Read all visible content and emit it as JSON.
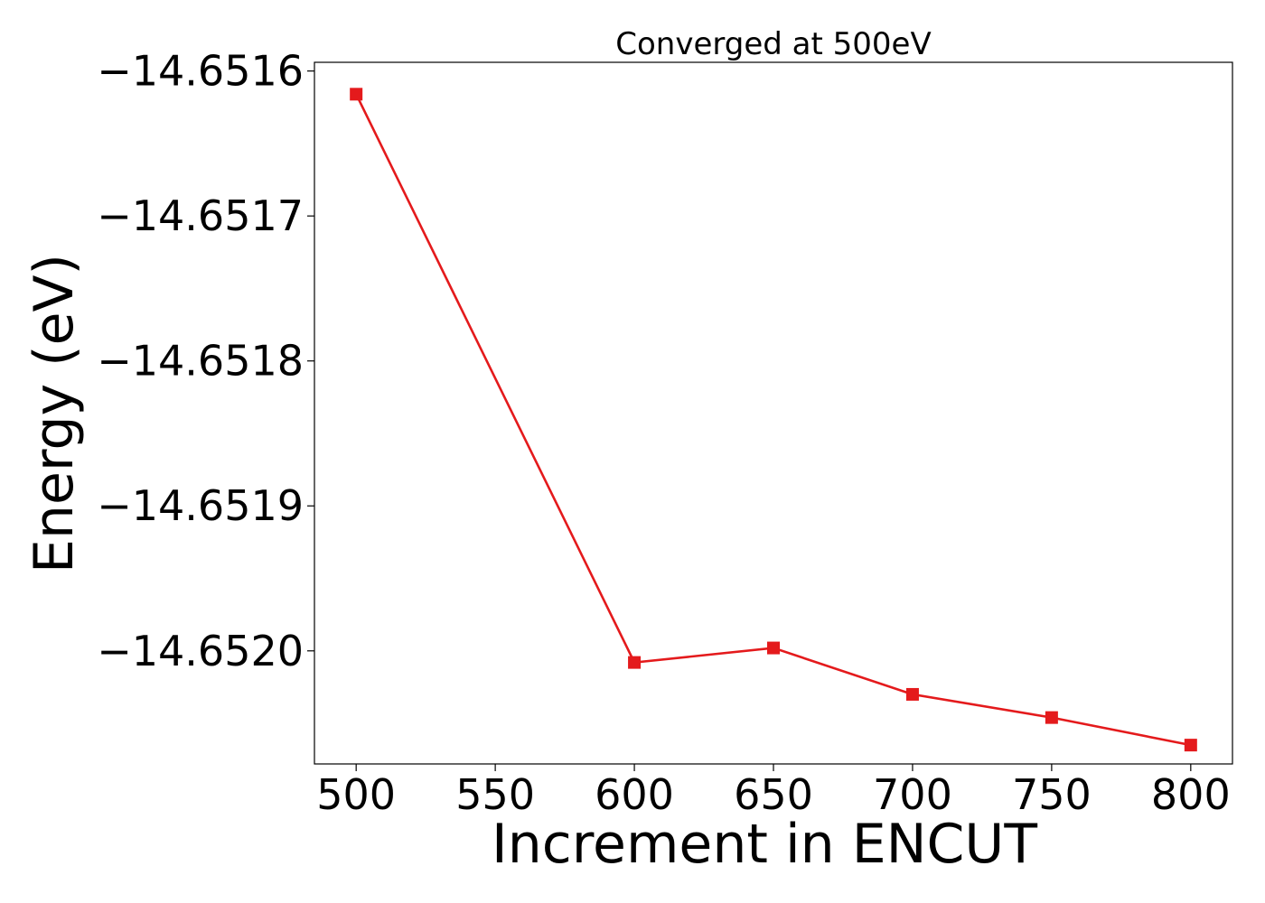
{
  "chart_data": {
    "type": "line",
    "title": "Converged at 500eV",
    "xlabel": "Increment in ENCUT",
    "ylabel": "Energy (eV)",
    "xlim": [
      485,
      815
    ],
    "ylim": [
      -14.652078,
      -14.651594
    ],
    "xticks": [
      500,
      550,
      600,
      650,
      700,
      750,
      800
    ],
    "xtick_labels": [
      "500",
      "550",
      "600",
      "650",
      "700",
      "750",
      "800"
    ],
    "yticks": [
      -14.6516,
      -14.6517,
      -14.6518,
      -14.6519,
      -14.652
    ],
    "ytick_labels": [
      "−14.6516",
      "−14.6517",
      "−14.6518",
      "−14.6519",
      "−14.6520"
    ],
    "grid": false,
    "legend": false,
    "series": [
      {
        "color": "#e41a1c",
        "marker": "square",
        "x": [
          500,
          600,
          650,
          700,
          750,
          800
        ],
        "y": [
          -14.651616,
          -14.652008,
          -14.651998,
          -14.65203,
          -14.652046,
          -14.652065
        ]
      }
    ]
  }
}
